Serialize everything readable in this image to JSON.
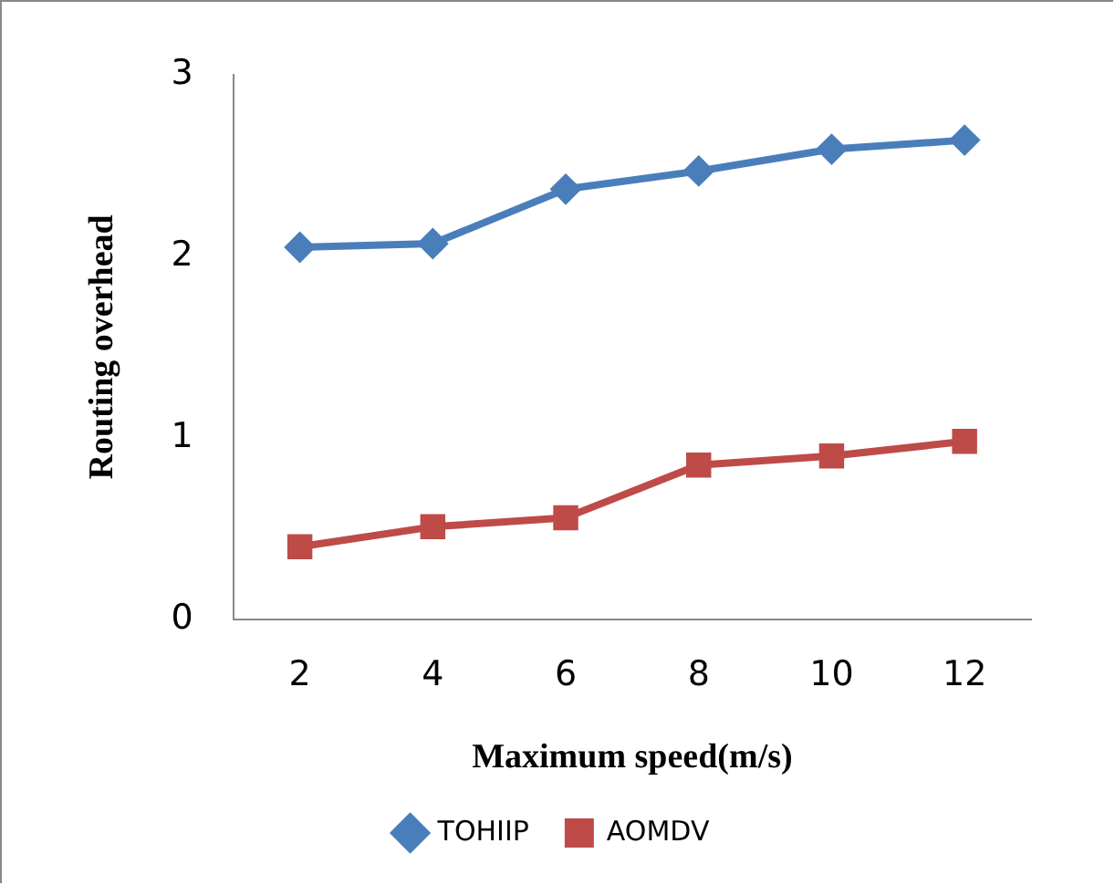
{
  "chart_data": {
    "type": "line",
    "xlabel": "Maximum speed(m/s)",
    "ylabel": "Routing overhead",
    "categories": [
      "2",
      "4",
      "6",
      "8",
      "10",
      "12"
    ],
    "series": [
      {
        "name": "TOHIIP",
        "color": "#4a7ebb",
        "marker": "diamond",
        "values": [
          2.05,
          2.07,
          2.37,
          2.47,
          2.59,
          2.64
        ]
      },
      {
        "name": "AOMDV",
        "color": "#be4b48",
        "marker": "square",
        "values": [
          0.4,
          0.51,
          0.56,
          0.85,
          0.9,
          0.98
        ]
      }
    ],
    "ylim": [
      0,
      3
    ],
    "yticks": [
      0,
      1,
      2,
      3
    ],
    "grid": false,
    "legend": "bottom",
    "line_style": "solid"
  }
}
